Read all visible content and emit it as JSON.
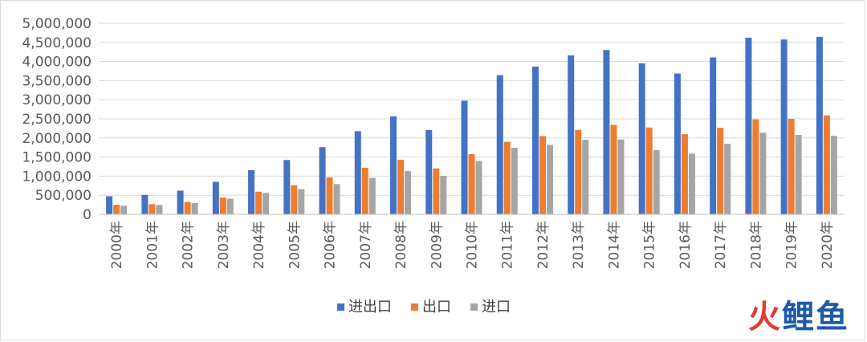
{
  "colors": {
    "series_0": "#4472C4",
    "series_1": "#ED7D31",
    "series_2": "#A5A5A5",
    "grid": "#d9d9d9",
    "axis": "#bfbfbf"
  },
  "chart_data": {
    "type": "bar",
    "title": "",
    "xlabel": "",
    "ylabel": "",
    "grid": true,
    "legend_position": "bottom",
    "ylim": [
      0,
      5000000
    ],
    "yticks": [
      "0",
      "500,000",
      "1,000,000",
      "1,500,000",
      "2,000,000",
      "2,500,000",
      "3,000,000",
      "3,500,000",
      "4,000,000",
      "4,500,000",
      "5,000,000"
    ],
    "categories": [
      "2000年",
      "2001年",
      "2002年",
      "2003年",
      "2004年",
      "2005年",
      "2006年",
      "2007年",
      "2008年",
      "2009年",
      "2010年",
      "2011年",
      "2012年",
      "2013年",
      "2014年",
      "2015年",
      "2016年",
      "2017年",
      "2018年",
      "2019年",
      "2020年"
    ],
    "series": [
      {
        "name": "进出口",
        "values": [
          474000,
          510000,
          620000,
          851000,
          1155000,
          1422000,
          1760000,
          2177000,
          2563000,
          2208000,
          2974000,
          3642000,
          3867000,
          4160000,
          4302000,
          3953000,
          3686000,
          4107000,
          4623000,
          4576000,
          4646000
        ]
      },
      {
        "name": "出口",
        "values": [
          249000,
          266000,
          326000,
          438000,
          593000,
          762000,
          969000,
          1220000,
          1430000,
          1202000,
          1578000,
          1898000,
          2049000,
          2210000,
          2342000,
          2273000,
          2098000,
          2263000,
          2487000,
          2499000,
          2590000
        ]
      },
      {
        "name": "进口",
        "values": [
          225000,
          244000,
          295000,
          413000,
          561000,
          660000,
          792000,
          956000,
          1133000,
          1006000,
          1396000,
          1743000,
          1818000,
          1950000,
          1960000,
          1680000,
          1588000,
          1844000,
          2136000,
          2077000,
          2056000
        ]
      }
    ]
  },
  "watermark": {
    "part1": "火",
    "part2": "鲤鱼"
  }
}
